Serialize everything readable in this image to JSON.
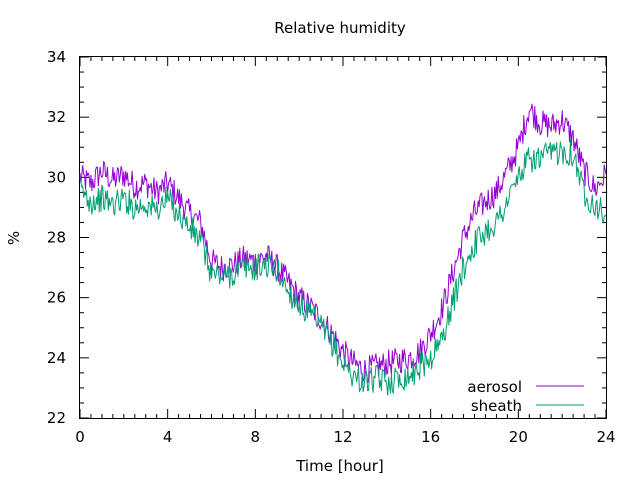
{
  "chart_data": {
    "type": "line",
    "title": "Relative humidity",
    "xlabel": "Time [hour]",
    "ylabel": "%",
    "xlim": [
      0,
      24
    ],
    "ylim": [
      22,
      34
    ],
    "xticks": [
      0,
      4,
      8,
      12,
      16,
      20,
      24
    ],
    "yticks": [
      22,
      24,
      26,
      28,
      30,
      32,
      34
    ],
    "grid": false,
    "legend": "bottom-right",
    "series": [
      {
        "name": "aerosol",
        "color": "#9400d3",
        "x": [
          0,
          0.5,
          1,
          1.5,
          2,
          2.5,
          3,
          3.5,
          4,
          4.5,
          5,
          5.5,
          6,
          6.5,
          7,
          7.5,
          8,
          8.5,
          9,
          9.5,
          10,
          10.5,
          11,
          11.5,
          12,
          12.5,
          13,
          13.5,
          14,
          14.5,
          15,
          15.5,
          16,
          16.5,
          17,
          17.5,
          18,
          18.5,
          19,
          19.5,
          20,
          20.5,
          21,
          21.5,
          22,
          22.5,
          23,
          23.5,
          24
        ],
        "y": [
          30.0,
          29.8,
          30.2,
          29.9,
          30.1,
          29.7,
          29.8,
          29.5,
          29.8,
          29.3,
          28.8,
          28.5,
          27.2,
          27.0,
          27.1,
          27.3,
          27.2,
          27.4,
          27.0,
          26.5,
          26.0,
          25.7,
          25.3,
          24.8,
          24.2,
          23.8,
          23.6,
          23.7,
          23.8,
          23.9,
          24.0,
          24.2,
          24.8,
          25.6,
          26.8,
          28.0,
          28.8,
          29.2,
          29.5,
          30.2,
          31.0,
          32.3,
          31.8,
          31.7,
          31.9,
          31.3,
          30.2,
          29.6,
          30.1
        ]
      },
      {
        "name": "sheath",
        "color": "#009e73",
        "x": [
          0,
          0.5,
          1,
          1.5,
          2,
          2.5,
          3,
          3.5,
          4,
          4.5,
          5,
          5.5,
          6,
          6.5,
          7,
          7.5,
          8,
          8.5,
          9,
          9.5,
          10,
          10.5,
          11,
          11.5,
          12,
          12.5,
          13,
          13.5,
          14,
          14.5,
          15,
          15.5,
          16,
          16.5,
          17,
          17.5,
          18,
          18.5,
          19,
          19.5,
          20,
          20.5,
          21,
          21.5,
          22,
          22.5,
          23,
          23.5,
          24
        ],
        "y": [
          29.6,
          29.2,
          29.3,
          29.1,
          29.3,
          29.0,
          29.1,
          28.9,
          29.3,
          28.8,
          28.3,
          27.9,
          26.8,
          26.7,
          26.8,
          27.0,
          27.0,
          27.1,
          26.9,
          26.2,
          25.8,
          25.4,
          25.0,
          24.5,
          23.8,
          23.4,
          23.2,
          23.3,
          23.2,
          23.3,
          23.4,
          23.7,
          24.0,
          24.6,
          25.8,
          27.0,
          27.8,
          28.2,
          28.5,
          29.2,
          30.0,
          30.6,
          30.6,
          30.8,
          30.9,
          30.8,
          29.5,
          29.1,
          28.7
        ]
      }
    ]
  }
}
